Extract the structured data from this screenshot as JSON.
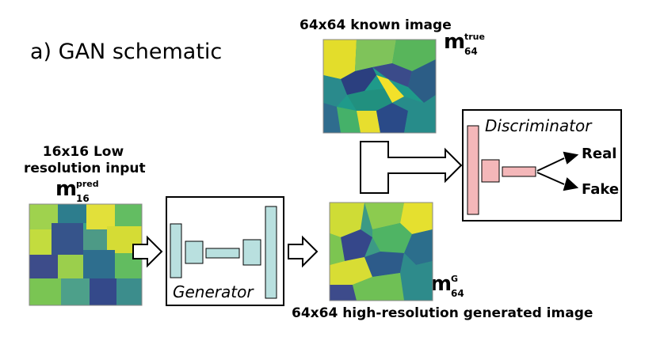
{
  "title": "a) GAN schematic",
  "known_image": {
    "caption": "64x64 known image",
    "symbol": "m",
    "superscript": "true",
    "subscript": "64"
  },
  "low_res_input": {
    "caption_line1": "16x16 Low",
    "caption_line2": "resolution input",
    "symbol": "m",
    "superscript": "pred",
    "subscript": "16"
  },
  "generated_image": {
    "caption": "64x64 high-resolution generated image",
    "symbol": "m",
    "superscript": "G",
    "subscript": "64"
  },
  "generator": {
    "label": "Generator"
  },
  "discriminator": {
    "label": "Discriminator"
  },
  "outputs": {
    "real": "Real",
    "fake": "Fake"
  },
  "colors": {
    "generator_block": "#b9e0df",
    "discriminator_block": "#f4b7b9",
    "viridis_dark": "#3b2a72",
    "viridis_mid": "#2a8a8a",
    "viridis_green": "#56b94f",
    "viridis_yellow": "#e8e03a"
  }
}
